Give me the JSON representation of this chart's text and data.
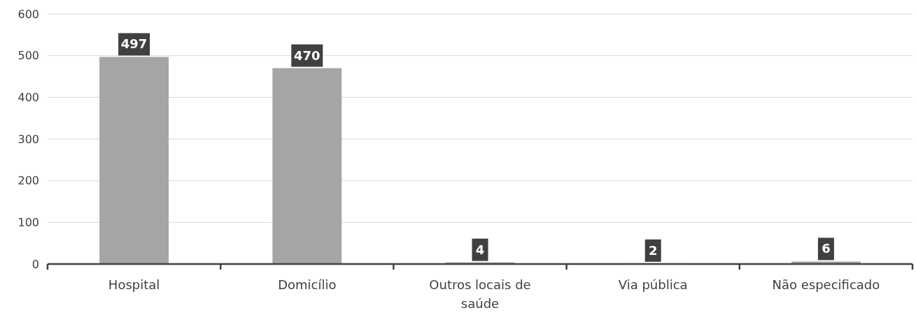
{
  "chart_data": {
    "type": "bar",
    "categories": [
      "Hospital",
      "Domicílio",
      "Outros locais de saúde",
      "Via pública",
      "Não especificado"
    ],
    "values": [
      497,
      470,
      4,
      2,
      6
    ],
    "color": "#a5a5a5",
    "ylim": [
      0,
      600
    ],
    "yticks": [
      0,
      100,
      200,
      300,
      400,
      500,
      600
    ],
    "grid": "y",
    "data_labels": true
  }
}
